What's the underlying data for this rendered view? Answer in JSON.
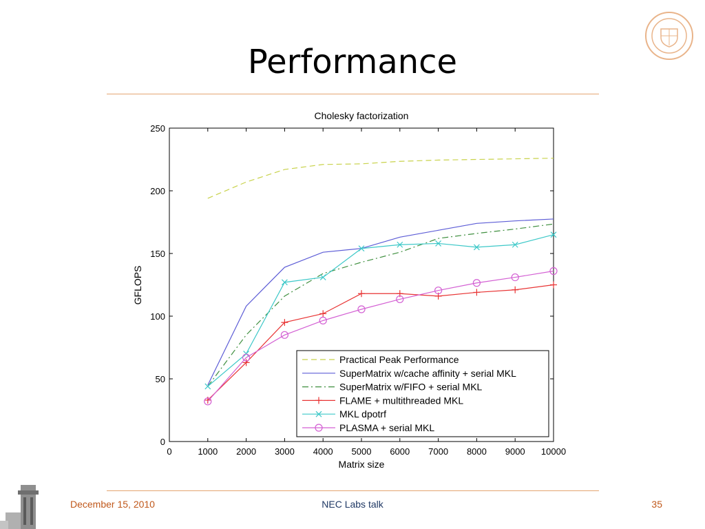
{
  "slide": {
    "title": "Performance",
    "footer_date": "December 15, 2010",
    "footer_center": "NEC Labs talk",
    "page_number": "35",
    "accent_color": "#c0581b"
  },
  "chart_data": {
    "type": "line",
    "title": "Cholesky factorization",
    "xlabel": "Matrix size",
    "ylabel": "GFLOPS",
    "xlim": [
      0,
      10000
    ],
    "ylim": [
      0,
      250
    ],
    "xticks": [
      0,
      1000,
      2000,
      3000,
      4000,
      5000,
      6000,
      7000,
      8000,
      9000,
      10000
    ],
    "yticks": [
      0,
      50,
      100,
      150,
      200,
      250
    ],
    "grid": false,
    "legend_position": "bottom-right",
    "x": [
      1000,
      2000,
      3000,
      4000,
      5000,
      6000,
      7000,
      8000,
      9000,
      10000
    ],
    "series": [
      {
        "name": "Practical Peak Performance",
        "color": "#c8d24a",
        "style": "dashed",
        "marker": "none",
        "values": [
          194,
          207,
          217,
          221,
          221.5,
          223.5,
          224.5,
          225,
          225.5,
          226
        ]
      },
      {
        "name": "SuperMatrix w/cache affinity + serial MKL",
        "color": "#5c5cd6",
        "style": "solid",
        "marker": "none",
        "values": [
          45,
          108,
          139,
          151,
          154,
          163,
          168.5,
          174,
          176,
          177.5
        ]
      },
      {
        "name": "SuperMatrix w/FIFO + serial MKL",
        "color": "#3f8f3f",
        "style": "dashdot",
        "marker": "none",
        "values": [
          44,
          85,
          116,
          134,
          143,
          151,
          162,
          166,
          169.5,
          173.5
        ]
      },
      {
        "name": "FLAME + multithreaded MKL",
        "color": "#e83333",
        "style": "solid",
        "marker": "plus",
        "values": [
          33,
          63,
          95,
          102,
          118,
          118,
          116,
          119,
          121,
          125
        ]
      },
      {
        "name": "MKL dpotrf",
        "color": "#3cc8c8",
        "style": "solid",
        "marker": "x",
        "values": [
          44,
          70,
          127,
          131,
          154,
          157,
          158,
          155,
          157,
          165
        ]
      },
      {
        "name": "PLASMA + serial MKL",
        "color": "#d35fd3",
        "style": "solid",
        "marker": "circle",
        "values": [
          32,
          67,
          85,
          96.5,
          105.5,
          113.5,
          120.5,
          126.5,
          131,
          136
        ]
      }
    ]
  }
}
